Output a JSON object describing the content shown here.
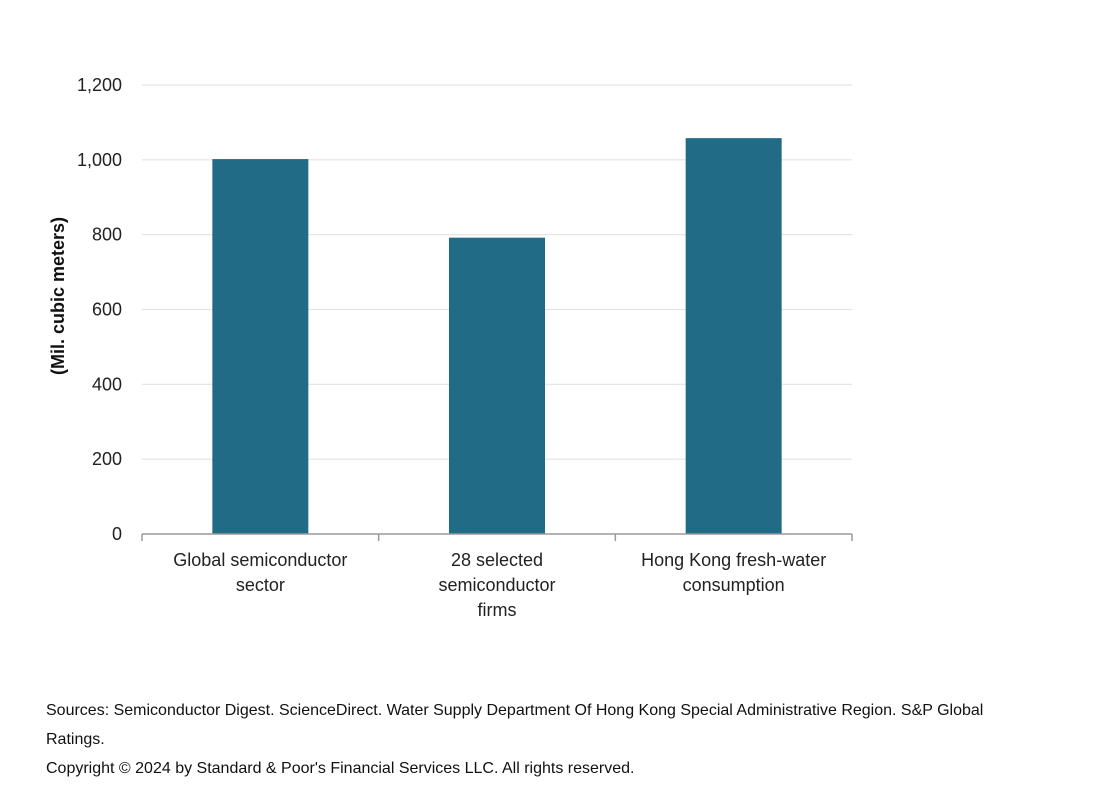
{
  "chart_data": {
    "type": "bar",
    "categories": [
      [
        "Global semiconductor",
        "sector"
      ],
      [
        "28 selected",
        "semiconductor",
        "firms"
      ],
      [
        "Hong Kong fresh-water",
        "consumption"
      ]
    ],
    "values": [
      1002,
      792,
      1058
    ],
    "ylabel": "(Mil. cubic meters)",
    "ylim": [
      0,
      1200
    ],
    "yticks": [
      0,
      200,
      400,
      600,
      800,
      1000,
      1200
    ],
    "ytick_labels": [
      "0",
      "200",
      "400",
      "600",
      "800",
      "1,000",
      "1,200"
    ],
    "grid": true,
    "bar_color": "#226b86",
    "grid_color": "#e3e3e3",
    "axis_color": "#9a9a9a"
  },
  "footer": {
    "sources": "Sources: Semiconductor Digest. ScienceDirect. Water Supply Department Of Hong Kong Special Administrative Region. S&P Global Ratings.",
    "copyright": "Copyright © 2024 by Standard & Poor's Financial Services LLC. All rights reserved."
  }
}
